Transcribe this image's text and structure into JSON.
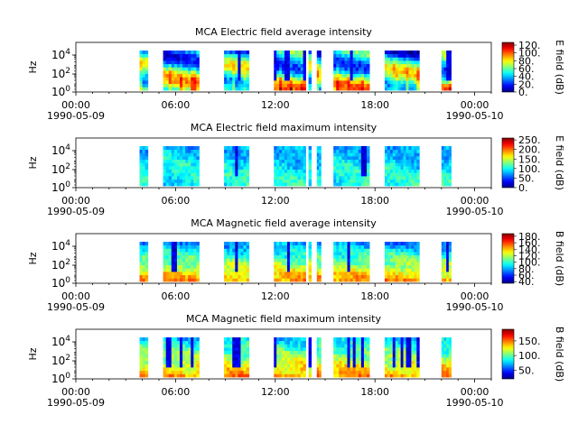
{
  "chart_data": [
    {
      "type": "heatmap",
      "title": "MCA  Electric field average intensity",
      "ylabel": "Hz",
      "y_scale": "log",
      "y_ticks": [
        "10^0",
        "10^2",
        "10^4"
      ],
      "x_ticks": [
        "00:00",
        "06:00",
        "12:00",
        "18:00",
        "00:00"
      ],
      "x_dates": [
        "1990-05-09",
        "1990-05-10"
      ],
      "x_range": [
        "1990-05-09 00:00",
        "1990-05-10 01:00"
      ],
      "colorbar": {
        "label": "E field (dB)",
        "colormap": "jet",
        "ticks": [
          "0.",
          "20.",
          "40.",
          "60.",
          "80.",
          "100.",
          "120."
        ],
        "range": [
          0,
          127
        ]
      },
      "data_intervals": [
        [
          "03:50",
          "04:20"
        ],
        [
          "05:15",
          "07:25"
        ],
        [
          "08:55",
          "10:25"
        ],
        [
          "11:55",
          "13:50"
        ],
        [
          "14:00",
          "14:10"
        ],
        [
          "14:30",
          "14:45"
        ],
        [
          "15:30",
          "17:40"
        ],
        [
          "18:35",
          "20:40"
        ],
        [
          "22:00",
          "22:35"
        ]
      ]
    },
    {
      "type": "heatmap",
      "title": "MCA  Electric field maximum intensity",
      "ylabel": "Hz",
      "y_scale": "log",
      "y_ticks": [
        "10^0",
        "10^2",
        "10^4"
      ],
      "x_ticks": [
        "00:00",
        "06:00",
        "12:00",
        "18:00",
        "00:00"
      ],
      "x_dates": [
        "1990-05-09",
        "1990-05-10"
      ],
      "x_range": [
        "1990-05-09 00:00",
        "1990-05-10 01:00"
      ],
      "colorbar": {
        "label": "E field (dB)",
        "colormap": "jet",
        "ticks": [
          "0.",
          "50.",
          "100.",
          "150.",
          "200.",
          "250."
        ],
        "range": [
          0,
          260
        ]
      },
      "data_intervals": [
        [
          "03:50",
          "04:20"
        ],
        [
          "05:15",
          "07:25"
        ],
        [
          "08:55",
          "10:25"
        ],
        [
          "11:55",
          "13:50"
        ],
        [
          "14:00",
          "14:10"
        ],
        [
          "14:30",
          "14:45"
        ],
        [
          "15:30",
          "17:40"
        ],
        [
          "18:35",
          "20:40"
        ],
        [
          "22:00",
          "22:35"
        ]
      ]
    },
    {
      "type": "heatmap",
      "title": "MCA  Magnetic field average intensity",
      "ylabel": "Hz",
      "y_scale": "log",
      "y_ticks": [
        "10^0",
        "10^2",
        "10^4"
      ],
      "x_ticks": [
        "00:00",
        "06:00",
        "12:00",
        "18:00",
        "00:00"
      ],
      "x_dates": [
        "1990-05-09",
        "1990-05-10"
      ],
      "x_range": [
        "1990-05-09 00:00",
        "1990-05-10 01:00"
      ],
      "colorbar": {
        "label": "B field (dB)",
        "colormap": "jet",
        "ticks": [
          "40.",
          "60.",
          "80.",
          "100.",
          "120.",
          "140.",
          "160.",
          "180."
        ],
        "range": [
          35,
          188
        ]
      },
      "data_intervals": [
        [
          "03:50",
          "04:20"
        ],
        [
          "05:15",
          "07:25"
        ],
        [
          "08:55",
          "10:25"
        ],
        [
          "11:55",
          "13:50"
        ],
        [
          "14:00",
          "14:10"
        ],
        [
          "14:30",
          "14:45"
        ],
        [
          "15:30",
          "17:40"
        ],
        [
          "18:35",
          "20:40"
        ],
        [
          "22:00",
          "22:35"
        ]
      ]
    },
    {
      "type": "heatmap",
      "title": "MCA  Magnetic field maximum intensity",
      "ylabel": "Hz",
      "y_scale": "log",
      "y_ticks": [
        "10^0",
        "10^2",
        "10^4"
      ],
      "x_ticks": [
        "00:00",
        "06:00",
        "12:00",
        "18:00",
        "00:00"
      ],
      "x_dates": [
        "1990-05-09",
        "1990-05-10"
      ],
      "x_range": [
        "1990-05-09 00:00",
        "1990-05-10 01:00"
      ],
      "colorbar": {
        "label": "B field (dB)",
        "colormap": "jet",
        "ticks": [
          "50.",
          "100.",
          "150."
        ],
        "range": [
          20,
          190
        ]
      },
      "data_intervals": [
        [
          "03:50",
          "04:20"
        ],
        [
          "05:15",
          "07:25"
        ],
        [
          "08:55",
          "10:25"
        ],
        [
          "11:55",
          "13:50"
        ],
        [
          "14:00",
          "14:10"
        ],
        [
          "14:30",
          "14:45"
        ],
        [
          "15:30",
          "17:40"
        ],
        [
          "18:35",
          "20:40"
        ],
        [
          "22:00",
          "22:35"
        ]
      ]
    }
  ]
}
